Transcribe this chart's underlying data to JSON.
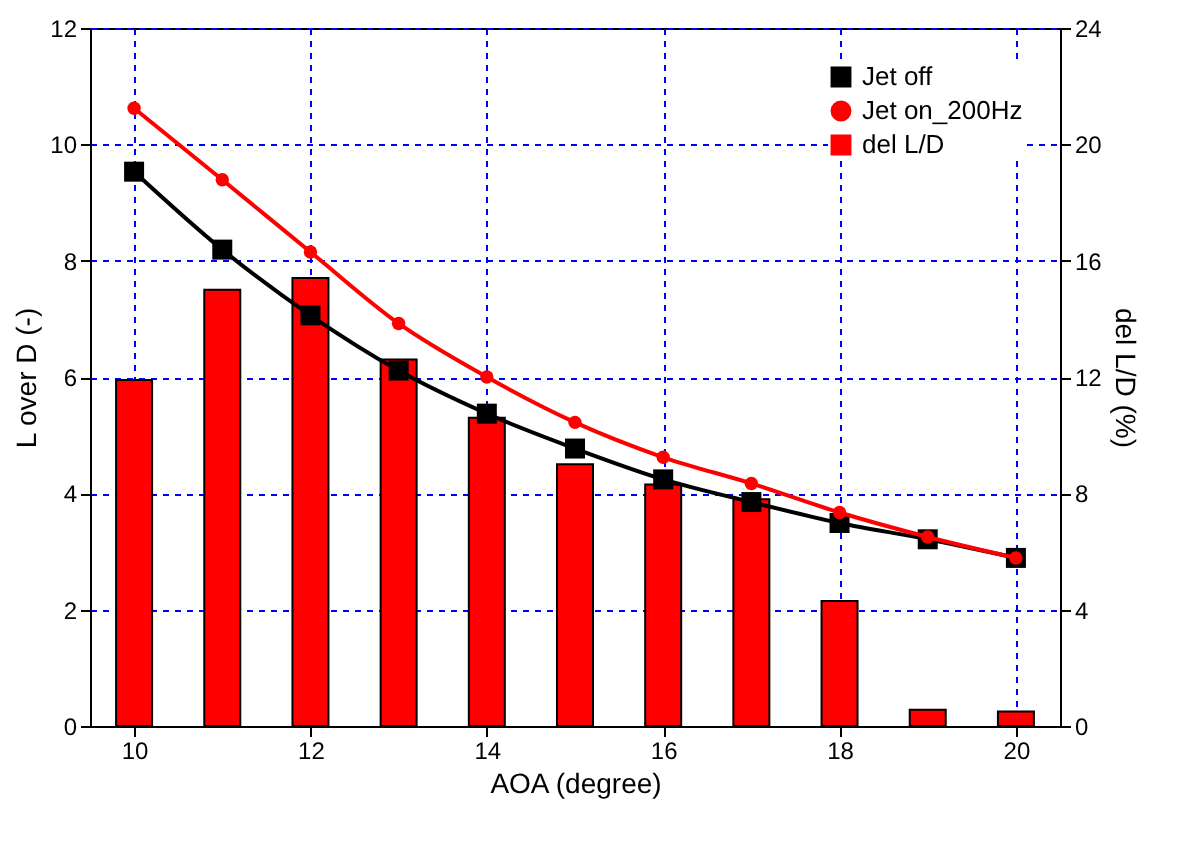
{
  "chart_data": {
    "type": "line",
    "x": [
      10,
      11,
      12,
      13,
      14,
      15,
      16,
      17,
      18,
      19,
      20
    ],
    "xlabel": "AOA (degree)",
    "ylabel": "L over D (-)",
    "y2label": "del L/D (%)",
    "xlim": [
      9.5,
      20.5
    ],
    "xticks": [
      10,
      12,
      14,
      16,
      18,
      20
    ],
    "ylim": [
      0,
      12
    ],
    "yticks": [
      0,
      2,
      4,
      6,
      8,
      10,
      12
    ],
    "y2lim": [
      0,
      24
    ],
    "y2ticks": [
      0,
      4,
      8,
      12,
      16,
      20,
      24
    ],
    "grid": true,
    "legend": "top right",
    "series": [
      {
        "name": "Jet off",
        "marker": "square",
        "color": "#000000",
        "values": [
          9.53,
          8.19,
          7.06,
          6.11,
          5.37,
          4.77,
          4.24,
          3.85,
          3.49,
          3.21,
          2.89
        ]
      },
      {
        "name": "Jet on_200Hz",
        "marker": "circle",
        "color": "#ff0000",
        "values": [
          10.62,
          9.39,
          8.15,
          6.92,
          6.0,
          5.22,
          4.62,
          4.17,
          3.67,
          3.25,
          2.89
        ]
      },
      {
        "name": "del L/D",
        "type": "bar",
        "axis": "y2",
        "color": "#ff0000",
        "values": [
          11.9,
          15.0,
          15.4,
          12.6,
          10.6,
          9.0,
          8.3,
          7.8,
          4.3,
          0.56,
          0.5
        ]
      }
    ]
  }
}
